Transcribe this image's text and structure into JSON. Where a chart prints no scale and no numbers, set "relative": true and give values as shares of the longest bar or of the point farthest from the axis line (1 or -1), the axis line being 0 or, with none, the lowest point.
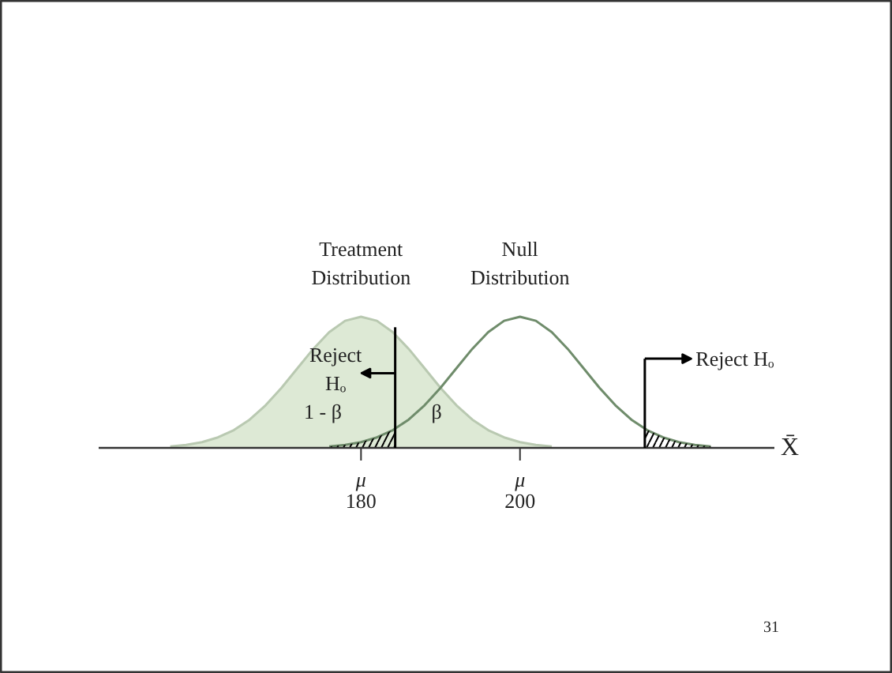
{
  "chart_data": {
    "type": "line",
    "relative": true,
    "xlabel": "X̄",
    "xlim": [
      147,
      232
    ],
    "xticks": [
      180,
      200
    ],
    "grid": false,
    "series": [
      {
        "type": "area",
        "color": "#dde9d5",
        "x": [
          156,
          158,
          160,
          162,
          164,
          166,
          168,
          170,
          172,
          174,
          176,
          178,
          180,
          182,
          184,
          186,
          188,
          190,
          192,
          194,
          196,
          198,
          200,
          202,
          204
        ],
        "values": [
          0.011,
          0.023,
          0.044,
          0.08,
          0.135,
          0.216,
          0.325,
          0.458,
          0.607,
          0.755,
          0.882,
          0.969,
          1,
          0.969,
          0.882,
          0.755,
          0.607,
          0.458,
          0.325,
          0.216,
          0.135,
          0.08,
          0.044,
          0.023,
          0.011
        ]
      },
      {
        "color": "#6f8c6b",
        "x": [
          176,
          178,
          180,
          182,
          184,
          186,
          188,
          190,
          192,
          194,
          196,
          198,
          200,
          202,
          204,
          206,
          208,
          210,
          212,
          214,
          216,
          218,
          220,
          222,
          224
        ],
        "values": [
          0.011,
          0.023,
          0.044,
          0.08,
          0.135,
          0.216,
          0.325,
          0.458,
          0.607,
          0.755,
          0.882,
          0.969,
          1,
          0.969,
          0.882,
          0.755,
          0.607,
          0.458,
          0.325,
          0.216,
          0.135,
          0.08,
          0.044,
          0.023,
          0.011
        ]
      },
      {
        "type": "area",
        "color": "#000000",
        "x": [
          176,
          178,
          180,
          182,
          184.3
        ],
        "values": [
          0.011,
          0.023,
          0.044,
          0.08,
          0.146
        ]
      },
      {
        "type": "area",
        "color": "#000000",
        "x": [
          215.7,
          218,
          220,
          222,
          224
        ],
        "values": [
          0.146,
          0.08,
          0.044,
          0.023,
          0.011
        ]
      }
    ],
    "ref_lines": [
      {
        "axis": "x",
        "value": 184.3,
        "label": "Reject Hₒ",
        "color": "#000000"
      },
      {
        "axis": "x",
        "value": 215.7,
        "label": "Reject Hₒ",
        "color": "#000000"
      }
    ],
    "annotations": [
      "Treatment\nDistribution",
      "Null\nDistribution",
      "1 - β",
      "β",
      "μ",
      "μ",
      "31"
    ]
  }
}
